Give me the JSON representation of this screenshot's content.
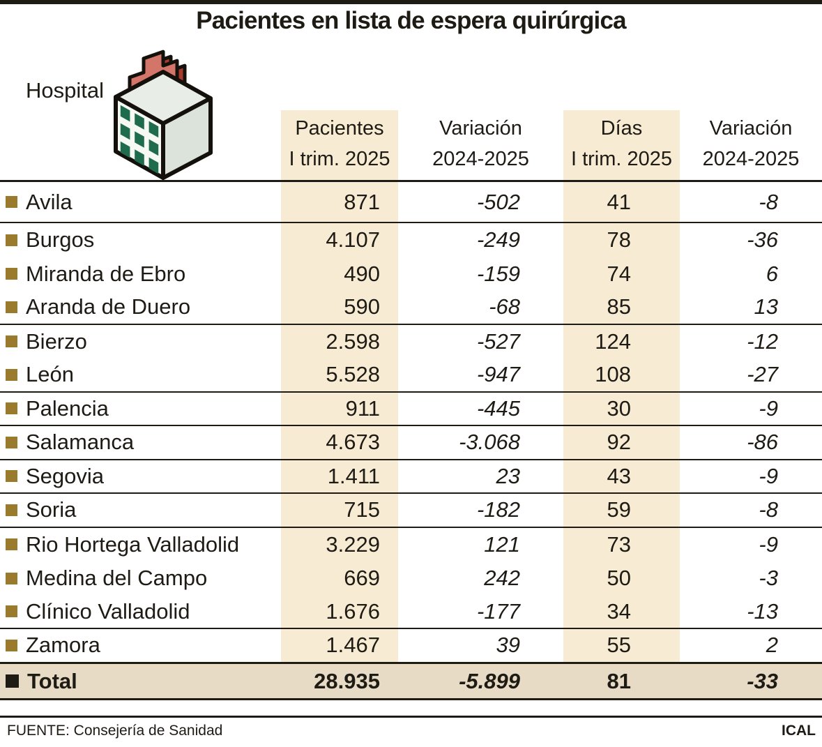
{
  "title": "Pacientes en lista de espera quirúrgica",
  "hospital_label": "Hospital",
  "header": {
    "col1": {
      "line1": "Pacientes",
      "line2": "I trim. 2025"
    },
    "col2": {
      "line1": "Variación",
      "line2": "2024-2025"
    },
    "col3": {
      "line1": "Días",
      "line2": "I trim. 2025"
    },
    "col4": {
      "line1": "Variación",
      "line2": "2024-2025"
    }
  },
  "rows": [
    {
      "name": "Avila",
      "pacientes": "871",
      "variacion_pacientes": "-502",
      "dias": "41",
      "variacion_dias": "-8",
      "separator_after": true
    },
    {
      "name": "Burgos",
      "pacientes": "4.107",
      "variacion_pacientes": "-249",
      "dias": "78",
      "variacion_dias": "-36",
      "separator_after": false
    },
    {
      "name": "Miranda de Ebro",
      "pacientes": "490",
      "variacion_pacientes": "-159",
      "dias": "74",
      "variacion_dias": "6",
      "separator_after": false
    },
    {
      "name": "Aranda de Duero",
      "pacientes": "590",
      "variacion_pacientes": "-68",
      "dias": "85",
      "variacion_dias": "13",
      "separator_after": true
    },
    {
      "name": "Bierzo",
      "pacientes": "2.598",
      "variacion_pacientes": "-527",
      "dias": "124",
      "variacion_dias": "-12",
      "separator_after": false
    },
    {
      "name": "León",
      "pacientes": "5.528",
      "variacion_pacientes": "-947",
      "dias": "108",
      "variacion_dias": "-27",
      "separator_after": true
    },
    {
      "name": "Palencia",
      "pacientes": "911",
      "variacion_pacientes": "-445",
      "dias": "30",
      "variacion_dias": "-9",
      "separator_after": true
    },
    {
      "name": "Salamanca",
      "pacientes": "4.673",
      "variacion_pacientes": "-3.068",
      "dias": "92",
      "variacion_dias": "-86",
      "separator_after": true
    },
    {
      "name": "Segovia",
      "pacientes": "1.411",
      "variacion_pacientes": "23",
      "dias": "43",
      "variacion_dias": "-9",
      "separator_after": true
    },
    {
      "name": "Soria",
      "pacientes": "715",
      "variacion_pacientes": "-182",
      "dias": "59",
      "variacion_dias": "-8",
      "separator_after": true
    },
    {
      "name": "Rio Hortega Valladolid",
      "pacientes": "3.229",
      "variacion_pacientes": "121",
      "dias": "73",
      "variacion_dias": "-9",
      "separator_after": false
    },
    {
      "name": "Medina del Campo",
      "pacientes": "669",
      "variacion_pacientes": "242",
      "dias": "50",
      "variacion_dias": "-3",
      "separator_after": false
    },
    {
      "name": "Clínico Valladolid",
      "pacientes": "1.676",
      "variacion_pacientes": "-177",
      "dias": "34",
      "variacion_dias": "-13",
      "separator_after": true
    },
    {
      "name": "Zamora",
      "pacientes": "1.467",
      "variacion_pacientes": "39",
      "dias": "55",
      "variacion_dias": "2",
      "separator_after": true
    }
  ],
  "total": {
    "label": "Total",
    "pacientes": "28.935",
    "variacion_pacientes": "-5.899",
    "dias": "81",
    "variacion_dias": "-33"
  },
  "footer": {
    "source": "FUENTE: Consejería de Sanidad",
    "credit": "ICAL"
  },
  "colors": {
    "ink": "#1e1a14",
    "highlight_band": "#f7ecd3",
    "total_row_bg": "#e8dbc5",
    "bullet_brown": "#9a7a2c",
    "cross_front": "#d4756a",
    "cross_side": "#a83a2b",
    "building_front": "#f5f8f3",
    "building_side": "#dce3db",
    "building_roof": "#e8eee7",
    "window_green": "#1f6b4e"
  },
  "chart_data": {
    "type": "table",
    "title": "Pacientes en lista de espera quirúrgica",
    "columns": [
      "Hospital",
      "Pacientes I trim. 2025",
      "Variación 2024-2025",
      "Días I trim. 2025",
      "Variación 2024-2025"
    ],
    "highlighted_columns": [
      "Pacientes I trim. 2025",
      "Días I trim. 2025"
    ],
    "rows": [
      [
        "Avila",
        871,
        -502,
        41,
        -8
      ],
      [
        "Burgos",
        4107,
        -249,
        78,
        -36
      ],
      [
        "Miranda de Ebro",
        490,
        -159,
        74,
        6
      ],
      [
        "Aranda de Duero",
        590,
        -68,
        85,
        13
      ],
      [
        "Bierzo",
        2598,
        -527,
        124,
        -12
      ],
      [
        "León",
        5528,
        -947,
        108,
        -27
      ],
      [
        "Palencia",
        911,
        -445,
        30,
        -9
      ],
      [
        "Salamanca",
        4673,
        -3068,
        92,
        -86
      ],
      [
        "Segovia",
        1411,
        23,
        43,
        -9
      ],
      [
        "Soria",
        715,
        -182,
        59,
        -8
      ],
      [
        "Rio Hortega Valladolid",
        3229,
        121,
        73,
        -9
      ],
      [
        "Medina del Campo",
        669,
        242,
        50,
        -3
      ],
      [
        "Clínico Valladolid",
        1676,
        -177,
        34,
        -13
      ],
      [
        "Zamora",
        1467,
        39,
        55,
        2
      ]
    ],
    "total_row": [
      "Total",
      28935,
      -5899,
      81,
      -33
    ],
    "source": "FUENTE: Consejería de Sanidad",
    "credit": "ICAL"
  }
}
